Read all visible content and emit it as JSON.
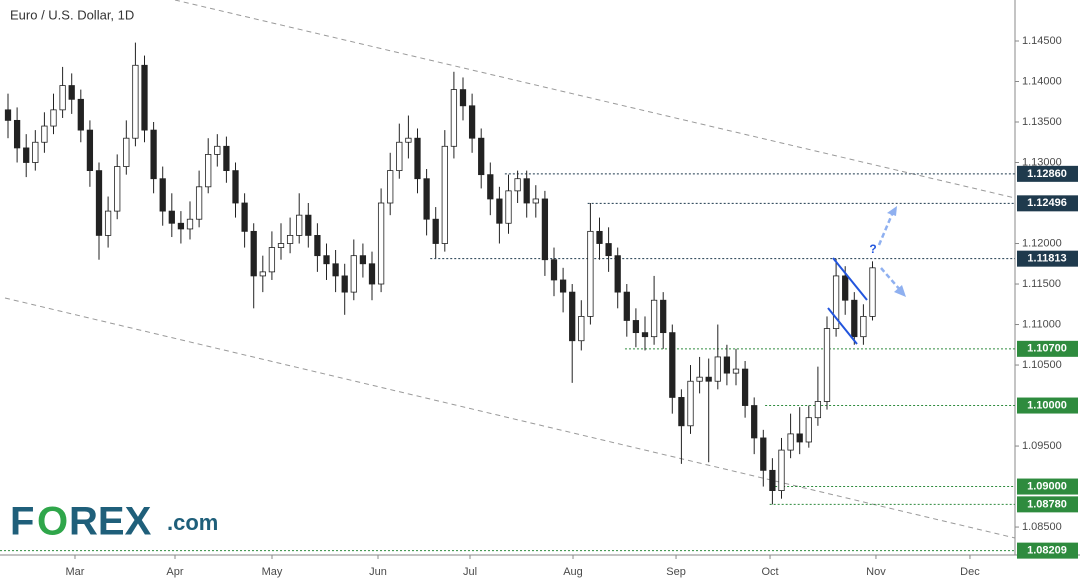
{
  "chart_data": {
    "type": "candlestick",
    "title": "Euro / U.S. Dollar, 1D",
    "xlim": [
      -0.88,
      110.66
    ],
    "xticks": [
      {
        "value": 7.36,
        "label": "Mar"
      },
      {
        "value": 18.35,
        "label": "Apr"
      },
      {
        "value": 29.01,
        "label": "May"
      },
      {
        "value": 40.66,
        "label": "Jun"
      },
      {
        "value": 50.77,
        "label": "Jul"
      },
      {
        "value": 62.09,
        "label": "Aug"
      },
      {
        "value": 73.41,
        "label": "Sep"
      },
      {
        "value": 83.74,
        "label": "Oct"
      },
      {
        "value": 95.38,
        "label": "Nov"
      },
      {
        "value": 105.71,
        "label": "Dec"
      }
    ],
    "ylim": [
      1.08155,
      1.15006
    ],
    "yticks": [
      {
        "value": 1.085,
        "label": "1.08500"
      },
      {
        "value": 1.095,
        "label": "1.09500"
      },
      {
        "value": 1.105,
        "label": "1.10500"
      },
      {
        "value": 1.11,
        "label": "1.11000"
      },
      {
        "value": 1.115,
        "label": "1.11500"
      },
      {
        "value": 1.12,
        "label": "1.12000"
      },
      {
        "value": 1.13,
        "label": "1.13000"
      },
      {
        "value": 1.135,
        "label": "1.13500"
      },
      {
        "value": 1.14,
        "label": "1.14000"
      },
      {
        "value": 1.145,
        "label": "1.14500"
      }
    ],
    "up_color": "#ffffff",
    "down_color": "#222222",
    "edge_color": "#222222",
    "open": [
      1.1365,
      1.1352,
      1.1318,
      1.13,
      1.1325,
      1.1345,
      1.1365,
      1.1395,
      1.1378,
      1.134,
      1.129,
      1.121,
      1.124,
      1.1295,
      1.133,
      1.142,
      1.134,
      1.128,
      1.124,
      1.1225,
      1.1218,
      1.123,
      1.127,
      1.131,
      1.132,
      1.129,
      1.125,
      1.1215,
      1.116,
      1.1165,
      1.1195,
      1.12,
      1.121,
      1.1235,
      1.121,
      1.1185,
      1.1175,
      1.116,
      1.114,
      1.1185,
      1.1175,
      1.115,
      1.125,
      1.129,
      1.1325,
      1.133,
      1.128,
      1.123,
      1.12,
      1.132,
      1.139,
      1.137,
      1.133,
      1.1285,
      1.1255,
      1.1225,
      1.1265,
      1.128,
      1.125,
      1.1255,
      1.118,
      1.1155,
      1.114,
      1.108,
      1.111,
      1.1215,
      1.12,
      1.1185,
      1.114,
      1.1105,
      1.109,
      1.1085,
      1.113,
      1.109,
      1.101,
      1.0975,
      1.103,
      1.1035,
      1.103,
      1.106,
      1.104,
      1.1045,
      1.1,
      1.096,
      1.092,
      1.0895,
      1.0945,
      1.0965,
      1.0955,
      1.0985,
      1.1005,
      1.1095,
      1.116,
      1.113,
      1.1085,
      1.111
    ],
    "high": [
      1.1385,
      1.1368,
      1.1335,
      1.134,
      1.1362,
      1.1385,
      1.1418,
      1.141,
      1.139,
      1.1352,
      1.13,
      1.1258,
      1.131,
      1.1352,
      1.1448,
      1.1432,
      1.135,
      1.1295,
      1.1262,
      1.124,
      1.1252,
      1.129,
      1.133,
      1.1335,
      1.1332,
      1.13,
      1.1262,
      1.1225,
      1.1185,
      1.1215,
      1.1225,
      1.1232,
      1.1262,
      1.125,
      1.1225,
      1.12,
      1.1192,
      1.1175,
      1.1205,
      1.12,
      1.119,
      1.1268,
      1.1312,
      1.1348,
      1.1358,
      1.1342,
      1.1292,
      1.1245,
      1.134,
      1.1412,
      1.1405,
      1.1385,
      1.1342,
      1.13,
      1.127,
      1.1285,
      1.129,
      1.129,
      1.1272,
      1.1265,
      1.1195,
      1.117,
      1.115,
      1.113,
      1.125,
      1.1232,
      1.122,
      1.1195,
      1.115,
      1.112,
      1.111,
      1.116,
      1.114,
      1.11,
      1.102,
      1.105,
      1.106,
      1.1058,
      1.11,
      1.1075,
      1.107,
      1.1055,
      1.101,
      1.097,
      1.0935,
      1.096,
      1.099,
      1.0998,
      1.1,
      1.1048,
      1.111,
      1.1181,
      1.1172,
      1.114,
      1.1125,
      1.1178
    ],
    "low": [
      1.133,
      1.13,
      1.1282,
      1.129,
      1.1312,
      1.1335,
      1.1355,
      1.136,
      1.1325,
      1.127,
      1.118,
      1.1195,
      1.123,
      1.1285,
      1.132,
      1.1325,
      1.1262,
      1.1222,
      1.1208,
      1.12,
      1.1205,
      1.122,
      1.1262,
      1.1295,
      1.1275,
      1.1232,
      1.1195,
      1.112,
      1.114,
      1.1155,
      1.118,
      1.1188,
      1.12,
      1.1195,
      1.1165,
      1.1155,
      1.114,
      1.1112,
      1.113,
      1.1158,
      1.113,
      1.114,
      1.1235,
      1.128,
      1.1305,
      1.1262,
      1.121,
      1.1182,
      1.119,
      1.1305,
      1.1352,
      1.1312,
      1.1268,
      1.1235,
      1.12,
      1.1212,
      1.125,
      1.1232,
      1.1232,
      1.116,
      1.1135,
      1.1115,
      1.1028,
      1.1068,
      1.11,
      1.118,
      1.1165,
      1.112,
      1.1085,
      1.1072,
      1.1068,
      1.1075,
      1.107,
      1.099,
      1.0928,
      1.0965,
      1.1015,
      1.093,
      1.102,
      1.1025,
      1.1025,
      1.0985,
      1.094,
      1.09,
      1.0878,
      1.0885,
      1.0935,
      1.094,
      1.0948,
      1.0975,
      1.0995,
      1.1085,
      1.1112,
      1.1075,
      1.1075,
      1.1105
    ],
    "close": [
      1.1352,
      1.1318,
      1.13,
      1.1325,
      1.1345,
      1.1365,
      1.1395,
      1.1378,
      1.134,
      1.129,
      1.121,
      1.124,
      1.1295,
      1.133,
      1.142,
      1.134,
      1.128,
      1.124,
      1.1225,
      1.1218,
      1.123,
      1.127,
      1.131,
      1.132,
      1.129,
      1.125,
      1.1215,
      1.116,
      1.1165,
      1.1195,
      1.12,
      1.121,
      1.1235,
      1.121,
      1.1185,
      1.1175,
      1.116,
      1.114,
      1.1185,
      1.1175,
      1.115,
      1.125,
      1.129,
      1.1325,
      1.133,
      1.128,
      1.123,
      1.12,
      1.132,
      1.139,
      1.137,
      1.133,
      1.1285,
      1.1255,
      1.1225,
      1.1265,
      1.128,
      1.125,
      1.1255,
      1.118,
      1.1155,
      1.114,
      1.108,
      1.111,
      1.1215,
      1.12,
      1.1185,
      1.114,
      1.1105,
      1.109,
      1.1085,
      1.113,
      1.109,
      1.101,
      1.0975,
      1.103,
      1.1035,
      1.103,
      1.106,
      1.104,
      1.1045,
      1.1,
      1.096,
      1.092,
      1.0895,
      1.0945,
      1.0965,
      1.0955,
      1.0985,
      1.1005,
      1.1095,
      1.116,
      1.113,
      1.1085,
      1.111,
      1.117
    ],
    "levels": [
      {
        "value": 1.1286,
        "label": "1.12860",
        "from": 54.6,
        "color": "#1f3a4d"
      },
      {
        "value": 1.12496,
        "label": "1.12496",
        "from": 63.7,
        "color": "#1f3a4d"
      },
      {
        "value": 1.11813,
        "label": "1.11813",
        "from": 46.4,
        "color": "#1f3a4d"
      },
      {
        "value": 1.107,
        "label": "1.10700",
        "from": 67.8,
        "color": "#2e8b3e"
      },
      {
        "value": 1.1,
        "label": "1.10000",
        "from": 83.2,
        "color": "#2e8b3e"
      },
      {
        "value": 1.09,
        "label": "1.09000",
        "from": 84.3,
        "color": "#2e8b3e"
      },
      {
        "value": 1.0878,
        "label": "1.08780",
        "from": 83.7,
        "color": "#2e8b3e"
      },
      {
        "value": 1.08209,
        "label": "1.08209",
        "from": -0.88,
        "color": "#2e8b3e"
      }
    ],
    "annotation": "?",
    "logo": {
      "main": "F",
      "o": "O",
      "rest": "REX",
      "suffix": ".com"
    }
  }
}
